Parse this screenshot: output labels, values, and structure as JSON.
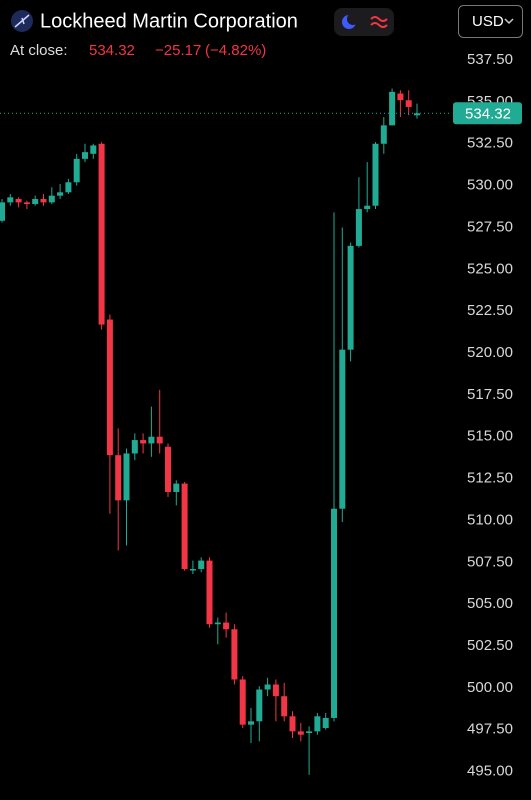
{
  "header": {
    "title": "Lockheed Martin Corporation",
    "close_label": "At close:",
    "close_price": "534.32",
    "change": "−25.17",
    "change_pct": "(−4.82%)",
    "currency": "USD"
  },
  "chart_data": {
    "type": "candlestick",
    "up_color": "#22ab94",
    "down_color": "#f23645",
    "open": [
      527.9,
      529.0,
      529.2,
      529.0,
      528.9,
      529.2,
      529.0,
      529.4,
      529.6,
      530.2,
      531.6,
      531.9,
      532.5,
      522.0,
      513.9,
      511.2,
      514.0,
      514.8,
      514.6,
      515.0,
      514.4,
      511.7,
      512.2,
      507.1,
      507.1,
      507.6,
      503.8,
      503.9,
      503.5,
      500.5,
      497.8,
      498.0,
      499.9,
      500.2,
      499.5,
      498.3,
      497.4,
      497.3,
      497.4,
      497.6,
      498.2,
      510.7,
      520.2,
      526.4,
      528.6,
      528.8,
      532.5,
      533.6,
      535.5,
      535.1,
      534.2
    ],
    "high": [
      529.2,
      529.5,
      529.3,
      529.1,
      529.4,
      529.5,
      529.9,
      530.1,
      530.4,
      531.9,
      532.5,
      532.5,
      532.6,
      522.3,
      515.5,
      514.3,
      515.2,
      515.2,
      516.8,
      517.8,
      514.6,
      512.4,
      512.3,
      507.6,
      507.8,
      507.8,
      504.2,
      504.5,
      503.8,
      500.7,
      498.8,
      500.1,
      500.6,
      500.5,
      500.3,
      498.6,
      497.9,
      497.7,
      498.5,
      498.5,
      528.4,
      527.5,
      526.6,
      530.5,
      531.4,
      532.6,
      534.1,
      535.8,
      535.7,
      535.7,
      534.9
    ],
    "low": [
      527.8,
      528.8,
      528.7,
      528.6,
      528.8,
      528.8,
      528.9,
      529.2,
      529.5,
      530.0,
      531.4,
      531.6,
      521.4,
      510.4,
      508.2,
      508.5,
      513.6,
      514.0,
      513.8,
      514.0,
      511.4,
      510.9,
      507.0,
      506.8,
      506.9,
      503.6,
      502.6,
      503.0,
      500.2,
      497.6,
      496.7,
      496.8,
      499.5,
      498.0,
      498.0,
      497.0,
      496.8,
      494.8,
      497.2,
      497.5,
      498.0,
      509.9,
      519.5,
      526.3,
      528.4,
      528.6,
      531.9,
      533.6,
      534.1,
      534.2,
      534.0
    ],
    "close": [
      529.0,
      529.3,
      529.0,
      528.9,
      529.2,
      529.0,
      529.4,
      529.6,
      530.2,
      531.6,
      532.0,
      532.4,
      521.7,
      513.9,
      511.2,
      514.0,
      514.8,
      514.6,
      515.0,
      514.6,
      511.7,
      512.2,
      507.1,
      507.1,
      507.6,
      503.8,
      503.9,
      503.5,
      500.5,
      497.8,
      498.0,
      499.9,
      500.2,
      499.5,
      498.3,
      497.4,
      497.2,
      497.4,
      498.3,
      498.2,
      510.7,
      520.2,
      526.4,
      528.6,
      528.8,
      532.5,
      533.6,
      535.6,
      535.1,
      534.7,
      534.32
    ],
    "last_price": {
      "value": 534.32,
      "label": "534.32"
    },
    "ylim": [
      493.3,
      538.4
    ],
    "yticks": [
      {
        "value": 495,
        "label": "495.00"
      },
      {
        "value": 497.5,
        "label": "497.50"
      },
      {
        "value": 500,
        "label": "500.00"
      },
      {
        "value": 502.5,
        "label": "502.50"
      },
      {
        "value": 505,
        "label": "505.00"
      },
      {
        "value": 507.5,
        "label": "507.50"
      },
      {
        "value": 510,
        "label": "510.00"
      },
      {
        "value": 512.5,
        "label": "512.50"
      },
      {
        "value": 515,
        "label": "515.00"
      },
      {
        "value": 517.5,
        "label": "517.50"
      },
      {
        "value": 520,
        "label": "520.00"
      },
      {
        "value": 522.5,
        "label": "522.50"
      },
      {
        "value": 525,
        "label": "525.00"
      },
      {
        "value": 527.5,
        "label": "527.50"
      },
      {
        "value": 530,
        "label": "530.00"
      },
      {
        "value": 532.5,
        "label": "532.50"
      },
      {
        "value": 535,
        "label": "535.00"
      },
      {
        "value": 537.5,
        "label": "537.50"
      }
    ]
  }
}
